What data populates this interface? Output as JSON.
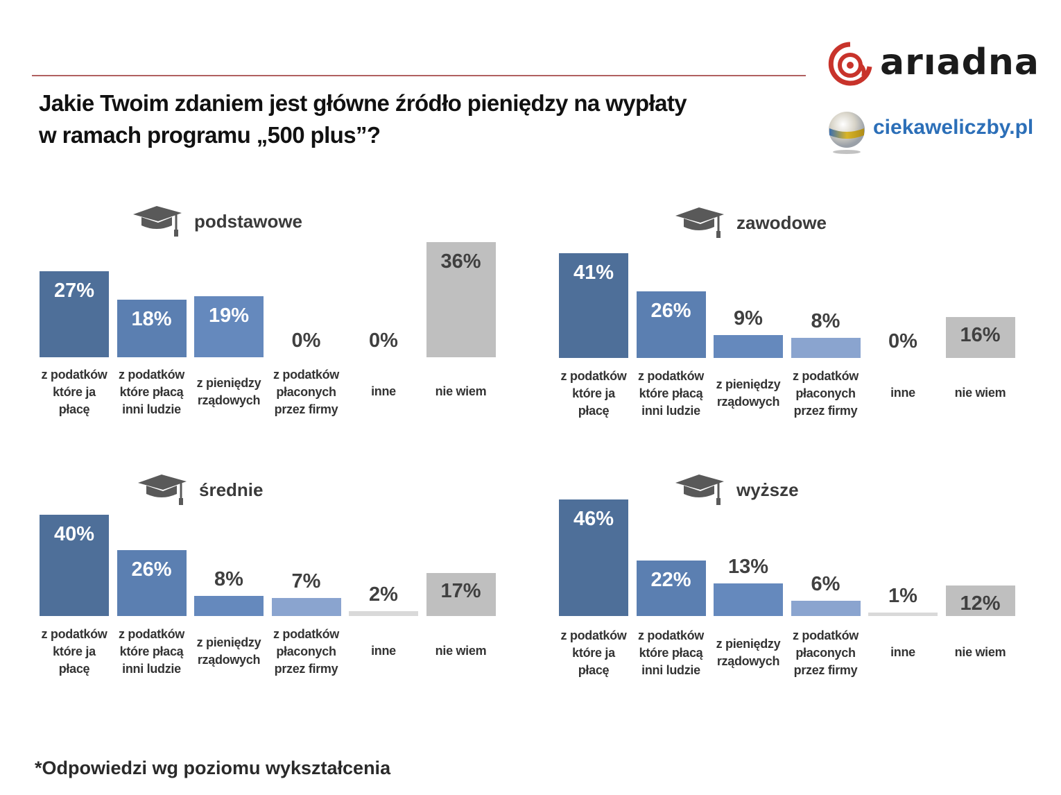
{
  "header": {
    "title_line1": "Jakie Twoim zdaniem jest główne źródło pieniędzy na wypłaty",
    "title_line2": "w ramach programu „500 plus”?",
    "brand_ariadna": "arıadna",
    "brand_ciekawe": "ciekaweliczby.pl",
    "accent_color": "#b06060"
  },
  "footer": {
    "note": "*Odpowiedzi wg poziomu wykształcenia"
  },
  "colors": {
    "bar1": "#4e6f99",
    "bar2": "#5b7fb1",
    "bar3": "#6589bd",
    "bar4": "#8aa4cf",
    "bar5": "#d9d9d9",
    "bar6": "#bfbfbf"
  },
  "chart_data": [
    {
      "type": "bar",
      "title": "podstawowe",
      "categories": [
        "z podatków które ja płacę",
        "z podatków które płacą inni ludzie",
        "z pieniędzy rządowych",
        "z podatków płaconych przez firmy",
        "inne",
        "nie wiem"
      ],
      "category_lines": [
        [
          "z podatków",
          "które ja",
          "płacę"
        ],
        [
          "z podatków",
          "które płacą",
          "inni ludzie"
        ],
        [
          "z pieniędzy",
          "rządowych"
        ],
        [
          "z podatków",
          "płaconych",
          "przez firmy"
        ],
        [
          "inne"
        ],
        [
          "nie wiem"
        ]
      ],
      "values": [
        27,
        18,
        19,
        0,
        0,
        36
      ],
      "labels": [
        "27%",
        "18%",
        "19%",
        "0%",
        "0%",
        "36%"
      ],
      "xlabel": "",
      "ylabel": "",
      "ylim": [
        0,
        36
      ]
    },
    {
      "type": "bar",
      "title": "zawodowe",
      "categories": [
        "z podatków które ja płacę",
        "z podatków które płacą inni ludzie",
        "z pieniędzy rządowych",
        "z podatków płaconych przez firmy",
        "inne",
        "nie wiem"
      ],
      "category_lines": [
        [
          "z podatków",
          "które ja",
          "płacę"
        ],
        [
          "z podatków",
          "które płacą",
          "inni ludzie"
        ],
        [
          "z pieniędzy",
          "rządowych"
        ],
        [
          "z podatków",
          "płaconych",
          "przez firmy"
        ],
        [
          "inne"
        ],
        [
          "nie wiem"
        ]
      ],
      "values": [
        41,
        26,
        9,
        8,
        0,
        16
      ],
      "labels": [
        "41%",
        "26%",
        "9%",
        "8%",
        "0%",
        "16%"
      ],
      "xlabel": "",
      "ylabel": "",
      "ylim": [
        0,
        46
      ]
    },
    {
      "type": "bar",
      "title": "średnie",
      "categories": [
        "z podatków które ja płacę",
        "z podatków które płacą inni ludzie",
        "z pieniędzy rządowych",
        "z podatków płaconych przez firmy",
        "inne",
        "nie wiem"
      ],
      "category_lines": [
        [
          "z podatków",
          "które ja",
          "płacę"
        ],
        [
          "z podatków",
          "które płacą",
          "inni ludzie"
        ],
        [
          "z pieniędzy",
          "rządowych"
        ],
        [
          "z podatków",
          "płaconych",
          "przez firmy"
        ],
        [
          "inne"
        ],
        [
          "nie wiem"
        ]
      ],
      "values": [
        40,
        26,
        8,
        7,
        2,
        17
      ],
      "labels": [
        "40%",
        "26%",
        "8%",
        "7%",
        "2%",
        "17%"
      ],
      "xlabel": "",
      "ylabel": "",
      "ylim": [
        0,
        46
      ]
    },
    {
      "type": "bar",
      "title": "wyższe",
      "categories": [
        "z podatków które ja płacę",
        "z podatków które płacą inni ludzie",
        "z pieniędzy rządowych",
        "z podatków płaconych przez firmy",
        "inne",
        "nie wiem"
      ],
      "category_lines": [
        [
          "z podatków",
          "które ja",
          "płacę"
        ],
        [
          "z podatków",
          "które płacą",
          "inni ludzie"
        ],
        [
          "z pieniędzy",
          "rządowych"
        ],
        [
          "z podatków",
          "płaconych",
          "przez firmy"
        ],
        [
          "inne"
        ],
        [
          "nie wiem"
        ]
      ],
      "values": [
        46,
        22,
        13,
        6,
        1,
        12
      ],
      "labels": [
        "46%",
        "22%",
        "13%",
        "6%",
        "1%",
        "12%"
      ],
      "xlabel": "",
      "ylabel": "",
      "ylim": [
        0,
        46
      ]
    }
  ]
}
